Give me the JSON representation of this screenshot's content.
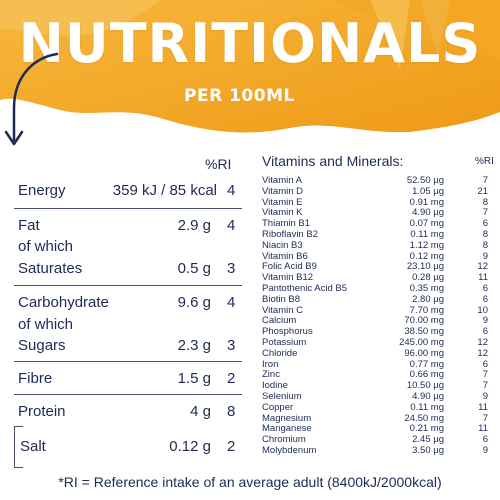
{
  "header": {
    "title": "NUTRITIONALS",
    "subtitle": "PER 100ML"
  },
  "colors": {
    "brand_orange": "#f2a11c",
    "light_orange": "#f7c45a",
    "navy_text": "#1d2a55"
  },
  "left_table": {
    "ri_header": "%RI",
    "rows": [
      {
        "name": "Energy",
        "value": "359 kJ / 85 kcal",
        "ri": "4"
      },
      {
        "name": "Fat",
        "value": "2.9 g",
        "ri": "4"
      },
      {
        "name": "of which",
        "value": "",
        "ri": ""
      },
      {
        "name": "Saturates",
        "value": "0.5 g",
        "ri": "3"
      },
      {
        "name": "Carbohydrate",
        "value": "9.6 g",
        "ri": "4"
      },
      {
        "name": "of which",
        "value": "",
        "ri": ""
      },
      {
        "name": "Sugars",
        "value": "2.3 g",
        "ri": "3"
      },
      {
        "name": "Fibre",
        "value": "1.5 g",
        "ri": "2"
      },
      {
        "name": "Protein",
        "value": "4 g",
        "ri": "8"
      },
      {
        "name": "Salt",
        "value": "0.12 g",
        "ri": "2"
      }
    ]
  },
  "right_table": {
    "title": "Vitamins and Minerals:",
    "ri_header": "%RI",
    "rows": [
      {
        "name": "Vitamin A",
        "value": "52.50 µg",
        "ri": "7"
      },
      {
        "name": "Vitamin D",
        "value": "1.05 µg",
        "ri": "21"
      },
      {
        "name": "Vitamin E",
        "value": "0.91 mg",
        "ri": "8"
      },
      {
        "name": "Vitamin K",
        "value": "4.90 µg",
        "ri": "7"
      },
      {
        "name": "Thiamin B1",
        "value": "0.07 mg",
        "ri": "6"
      },
      {
        "name": "Riboflavin B2",
        "value": "0.11 mg",
        "ri": "8"
      },
      {
        "name": "Niacin B3",
        "value": "1.12 mg",
        "ri": "8"
      },
      {
        "name": "Vitamin B6",
        "value": "0.12 mg",
        "ri": "9"
      },
      {
        "name": "Folic Acid B9",
        "value": "23.10 µg",
        "ri": "12"
      },
      {
        "name": "Vitamin B12",
        "value": "0.28 µg",
        "ri": "11"
      },
      {
        "name": "Pantothenic Acid B5",
        "value": "0.35 mg",
        "ri": "6"
      },
      {
        "name": "Biotin B8",
        "value": "2.80 µg",
        "ri": "6"
      },
      {
        "name": "Vitamin C",
        "value": "7.70 mg",
        "ri": "10"
      },
      {
        "name": "Calcium",
        "value": "70.00 mg",
        "ri": "9"
      },
      {
        "name": "Phosphorus",
        "value": "38.50 mg",
        "ri": "6"
      },
      {
        "name": "Potassium",
        "value": "245.00 mg",
        "ri": "12"
      },
      {
        "name": "Chloride",
        "value": "96.00 mg",
        "ri": "12"
      },
      {
        "name": "Iron",
        "value": "0.77 mg",
        "ri": "6"
      },
      {
        "name": "Zinc",
        "value": "0.66 mg",
        "ri": "7"
      },
      {
        "name": "Iodine",
        "value": "10.50 µg",
        "ri": "7"
      },
      {
        "name": "Selenium",
        "value": "4.90 µg",
        "ri": "9"
      },
      {
        "name": "Copper",
        "value": "0.11 mg",
        "ri": "11"
      },
      {
        "name": "Magnesium",
        "value": "24.50 mg",
        "ri": "7"
      },
      {
        "name": "Manganese",
        "value": "0.21 mg",
        "ri": "11"
      },
      {
        "name": "Chromium",
        "value": "2.45 µg",
        "ri": "6"
      },
      {
        "name": "Molybdenum",
        "value": "3.50 µg",
        "ri": "9"
      }
    ]
  },
  "footnote": "*RI = Reference intake of an average adult (8400kJ/2000kcal)"
}
